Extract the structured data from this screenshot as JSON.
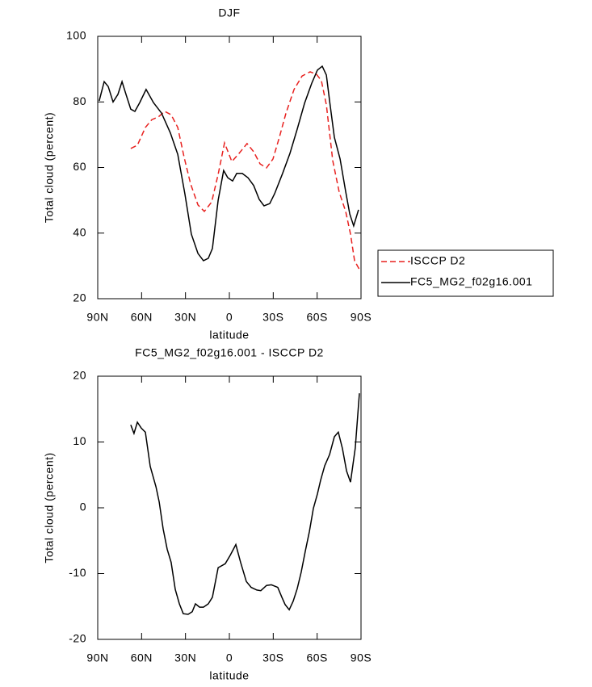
{
  "chart_data": [
    {
      "type": "line",
      "title": "DJF",
      "xlabel": "latitude",
      "ylabel": "Total cloud (percent)",
      "xlim": [
        90,
        -90
      ],
      "ylim": [
        20,
        100
      ],
      "xticks": [
        {
          "value": 90,
          "label": "90N"
        },
        {
          "value": 60,
          "label": "60N"
        },
        {
          "value": 30,
          "label": "30N"
        },
        0,
        {
          "value": -30,
          "label": "30S"
        },
        {
          "value": -60,
          "label": "60S"
        },
        {
          "value": -90,
          "label": "90S"
        }
      ],
      "yticks": [
        20,
        40,
        60,
        80,
        100
      ],
      "legend": "outside right",
      "series": [
        {
          "name": "ISCCP D2",
          "color": "#e8211f",
          "dash": true,
          "x": [
            67.4,
            62.9,
            57.4,
            53,
            48.6,
            44.2,
            39.8,
            35.3,
            30.9,
            26.5,
            21.5,
            17.1,
            12.1,
            7.7,
            3.3,
            -1.7,
            -6.6,
            -12.1,
            -16.6,
            -21,
            -25.4,
            -29.8,
            -34.2,
            -38.7,
            -44.2,
            -49.7,
            -55.2,
            -59.6,
            -62.9,
            -66.3,
            -70.7,
            -75.1,
            -79.5,
            -82.8,
            -85.6,
            -88.9
          ],
          "values": [
            65.8,
            66.8,
            72.2,
            74.6,
            75.4,
            77.1,
            76.1,
            72.2,
            63.1,
            55,
            48.6,
            46.6,
            49.5,
            57.9,
            67.5,
            61.8,
            64.3,
            67.3,
            64.8,
            61.1,
            59.9,
            62.6,
            69.2,
            76.6,
            83.8,
            87.9,
            89.2,
            88.4,
            86.5,
            79.1,
            62.1,
            52.5,
            46.6,
            39.7,
            31.6,
            28.9
          ]
        },
        {
          "name": "FC5_MG2_f02g16.001",
          "color": "#000000",
          "dash": false,
          "x": [
            89,
            85.6,
            82.8,
            79.5,
            76.2,
            73.4,
            70.7,
            67.4,
            64.6,
            61.3,
            56.9,
            51.9,
            46.4,
            40.3,
            35.3,
            30.4,
            26,
            21.5,
            17.7,
            14.4,
            11.6,
            7.7,
            3.9,
            1.1,
            -2.2,
            -5,
            -8.8,
            -12.7,
            -16.6,
            -20.4,
            -23.7,
            -27.6,
            -30.9,
            -36.4,
            -41.4,
            -46.4,
            -51.4,
            -56.3,
            -60.2,
            -63.5,
            -66.3,
            -68.5,
            -71.8,
            -75.7,
            -79.5,
            -82.3,
            -85,
            -88.3
          ],
          "values": [
            80.3,
            86.2,
            84.7,
            80,
            82.3,
            86.2,
            82.3,
            77.8,
            77.1,
            79.8,
            83.8,
            79.8,
            76.6,
            70.5,
            64,
            52,
            39.7,
            33.8,
            31.6,
            32.3,
            35.3,
            50,
            59.1,
            56.9,
            55.9,
            58.2,
            58.2,
            56.9,
            54.5,
            50.3,
            48.3,
            49,
            52,
            58.2,
            64.3,
            71.7,
            79.6,
            85.7,
            89.7,
            90.9,
            88.2,
            80.3,
            69.2,
            62.6,
            52.7,
            45.8,
            42.2,
            47.1
          ]
        }
      ]
    },
    {
      "type": "line",
      "title": "FC5_MG2_f02g16.001 - ISCCP D2",
      "xlabel": "latitude",
      "ylabel": "Total cloud (percent)",
      "xlim": [
        90,
        -90
      ],
      "ylim": [
        -20,
        20
      ],
      "xticks": [
        {
          "value": 90,
          "label": "90N"
        },
        {
          "value": 60,
          "label": "60N"
        },
        {
          "value": 30,
          "label": "30N"
        },
        0,
        {
          "value": -30,
          "label": "30S"
        },
        {
          "value": -60,
          "label": "60S"
        },
        {
          "value": -90,
          "label": "90S"
        }
      ],
      "yticks": [
        -20,
        -10,
        0,
        10,
        20
      ],
      "series": [
        {
          "color": "#000000",
          "dash": false,
          "x": [
            67.4,
            65.2,
            62.9,
            60.2,
            57.4,
            54.1,
            50.2,
            48,
            45.3,
            42.5,
            39.8,
            37,
            34.2,
            31.5,
            28.2,
            25.4,
            23.2,
            20.4,
            17.7,
            14.4,
            11.6,
            7.7,
            2.8,
            -0.6,
            -4.4,
            -7.7,
            -11.6,
            -14.9,
            -18.8,
            -21.5,
            -25.4,
            -28.7,
            -33.1,
            -35.9,
            -38.1,
            -40.9,
            -43.6,
            -46.4,
            -49.1,
            -51.9,
            -54.7,
            -57.4,
            -60.2,
            -62.4,
            -65.2,
            -68.5,
            -71.8,
            -74.5,
            -77.3,
            -80.1,
            -82.8,
            -86.1,
            -88.9
          ],
          "values": [
            12.6,
            11.3,
            13,
            12.1,
            11.5,
            6.3,
            3.2,
            0.9,
            -3.2,
            -6.3,
            -8.3,
            -12.4,
            -14.6,
            -16.1,
            -16.2,
            -15.8,
            -14.6,
            -15.1,
            -15.1,
            -14.6,
            -13.6,
            -9.1,
            -8.5,
            -7.2,
            -5.6,
            -8.3,
            -11.2,
            -12.1,
            -12.5,
            -12.6,
            -11.8,
            -11.7,
            -12.1,
            -13.6,
            -14.7,
            -15.5,
            -14.2,
            -12.3,
            -9.8,
            -6.6,
            -3.6,
            -0.1,
            2.1,
            4.2,
            6.4,
            8.1,
            10.8,
            11.5,
            9,
            5.6,
            3.9,
            9.1,
            17.4
          ]
        }
      ]
    }
  ]
}
